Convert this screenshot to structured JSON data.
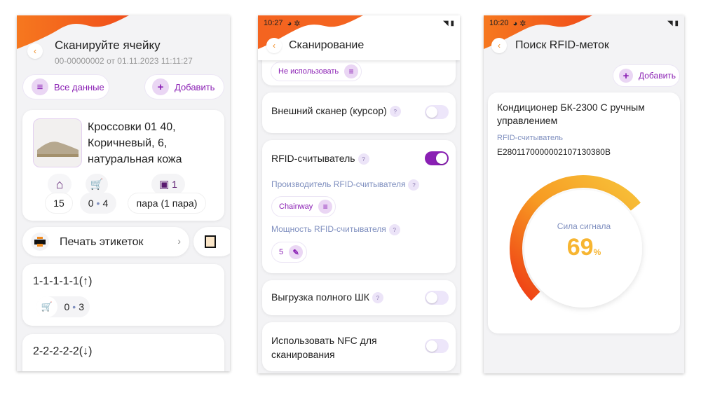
{
  "screen1": {
    "title": "Сканируйте ячейку",
    "subtitle": "00-00000002 от 01.11.2023 11:11:27",
    "filter_label": "Все данные",
    "add_label": "Добавить",
    "product": {
      "name": "Кроссовки 01 40, Коричневый, 6, натуральная кожа",
      "cell_qty": "15",
      "cart_qty": "0",
      "cart_total": "4",
      "pack_count": "1",
      "unit": "пара (1 пара)"
    },
    "print_label": "Печать этикеток",
    "cells": [
      {
        "name": "1-1-1-1-1(↑)",
        "qty": "0",
        "total": "3"
      },
      {
        "name": "2-2-2-2-2(↓)"
      }
    ]
  },
  "screen2": {
    "time": "10:27",
    "title": "Сканирование",
    "top_select": "Не использовать",
    "external_scanner": {
      "label": "Внешний сканер (курсор)",
      "enabled": false
    },
    "rfid": {
      "label": "RFID-считыватель",
      "enabled": true,
      "vendor_label": "Производитель RFID-считывателя",
      "vendor": "Chainway",
      "power_label": "Мощность RFID-считывателя",
      "power": "5"
    },
    "full_barcode": {
      "label": "Выгрузка полного ШК",
      "enabled": false
    },
    "nfc": {
      "label": "Использовать NFC для сканирования",
      "enabled": false
    },
    "help": "?"
  },
  "screen3": {
    "time": "10:20",
    "title": "Поиск RFID-меток",
    "add_label": "Добавить",
    "item_name": "Кондиционер БК-2300 С ручным управлением",
    "reader_label": "RFID-считыватель",
    "tag": "E280117000000210713038​0B",
    "signal_label": "Сила сигнала",
    "signal_value": "69",
    "signal_unit": "%"
  },
  "colors": {
    "accent": "#8a1fb4",
    "orange": "#f26a1b",
    "yellow": "#f7b531"
  }
}
